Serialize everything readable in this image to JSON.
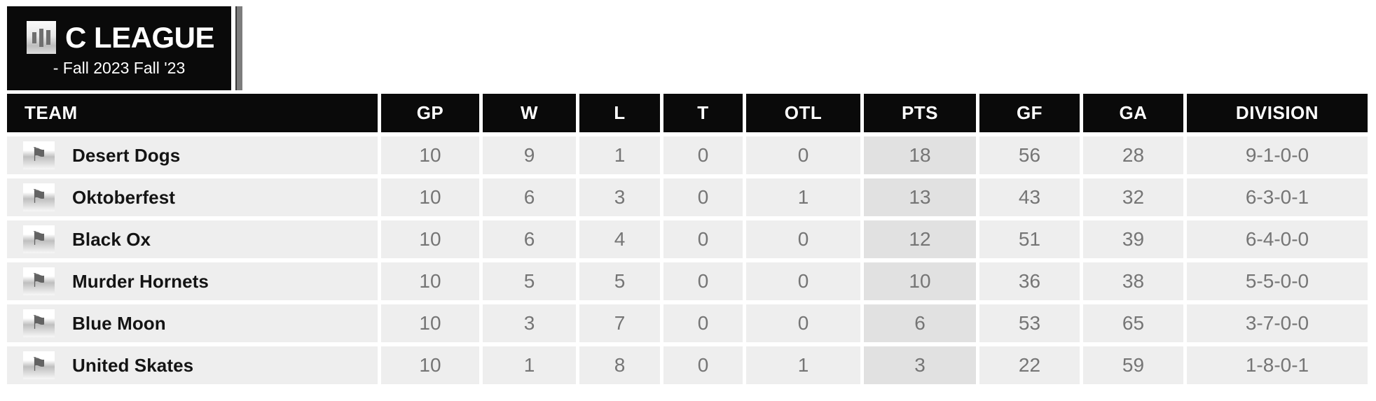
{
  "league": {
    "title": "C LEAGUE",
    "subtitle": "- Fall 2023 Fall '23",
    "logo_icon": "stats-bars-icon"
  },
  "table": {
    "columns": [
      {
        "key": "team",
        "label": "TEAM"
      },
      {
        "key": "gp",
        "label": "GP"
      },
      {
        "key": "w",
        "label": "W"
      },
      {
        "key": "l",
        "label": "L"
      },
      {
        "key": "t",
        "label": "T"
      },
      {
        "key": "otl",
        "label": "OTL"
      },
      {
        "key": "pts",
        "label": "PTS"
      },
      {
        "key": "gf",
        "label": "GF"
      },
      {
        "key": "ga",
        "label": "GA"
      },
      {
        "key": "division",
        "label": "DIVISION"
      }
    ],
    "rows": [
      {
        "team": "Desert Dogs",
        "gp": "10",
        "w": "9",
        "l": "1",
        "t": "0",
        "otl": "0",
        "pts": "18",
        "gf": "56",
        "ga": "28",
        "division": "9-1-0-0"
      },
      {
        "team": "Oktoberfest",
        "gp": "10",
        "w": "6",
        "l": "3",
        "t": "0",
        "otl": "1",
        "pts": "13",
        "gf": "43",
        "ga": "32",
        "division": "6-3-0-1"
      },
      {
        "team": "Black Ox",
        "gp": "10",
        "w": "6",
        "l": "4",
        "t": "0",
        "otl": "0",
        "pts": "12",
        "gf": "51",
        "ga": "39",
        "division": "6-4-0-0"
      },
      {
        "team": "Murder Hornets",
        "gp": "10",
        "w": "5",
        "l": "5",
        "t": "0",
        "otl": "0",
        "pts": "10",
        "gf": "36",
        "ga": "38",
        "division": "5-5-0-0"
      },
      {
        "team": "Blue Moon",
        "gp": "10",
        "w": "3",
        "l": "7",
        "t": "0",
        "otl": "0",
        "pts": "6",
        "gf": "53",
        "ga": "65",
        "division": "3-7-0-0"
      },
      {
        "team": "United Skates",
        "gp": "10",
        "w": "1",
        "l": "8",
        "t": "0",
        "otl": "1",
        "pts": "3",
        "gf": "22",
        "ga": "59",
        "division": "1-8-0-1"
      }
    ],
    "flag_icon": "team-flag-icon"
  },
  "colors": {
    "header_bg": "#0a0a0a",
    "row_bg": "#eeeeee",
    "pts_cell_bg": "#e1e1e1",
    "value_text": "#757575",
    "team_text": "#141414",
    "stripe": "#7d7d7d"
  }
}
